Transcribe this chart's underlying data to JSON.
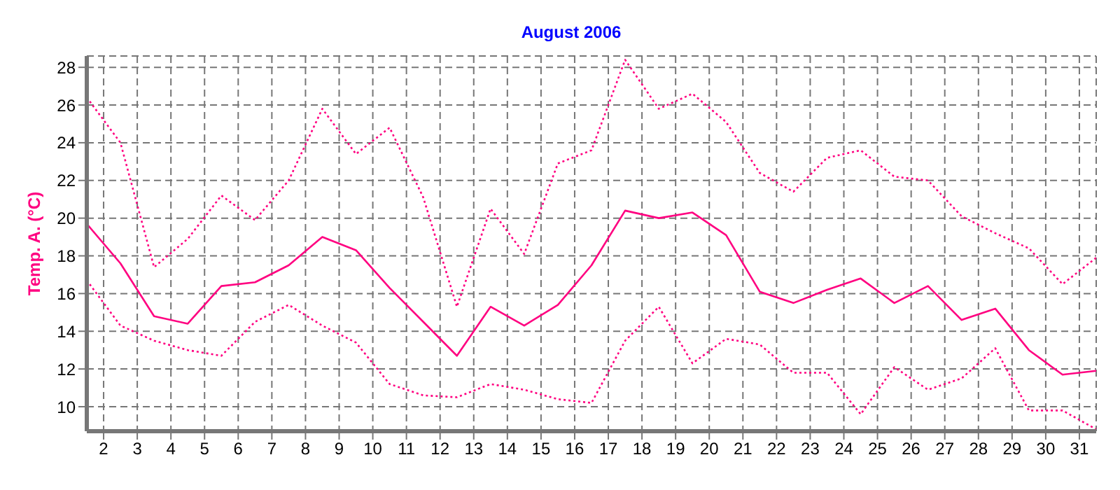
{
  "chart_data": {
    "type": "line",
    "title": "August 2006",
    "ylabel": "Temp. A. (°C)",
    "x": [
      1.5,
      2.5,
      3.5,
      4.5,
      5.5,
      6.5,
      7.5,
      8.5,
      9.5,
      10.5,
      11.5,
      12.5,
      13.5,
      14.5,
      15.5,
      16.5,
      17.5,
      18.5,
      19.5,
      20.5,
      21.5,
      22.5,
      23.5,
      24.5,
      25.5,
      26.5,
      27.5,
      28.5,
      29.5,
      30.5,
      31.5
    ],
    "series": [
      {
        "color": "#ff0080",
        "line_style": "dotted",
        "values": [
          26.4,
          24.0,
          17.4,
          18.9,
          21.2,
          19.9,
          22.0,
          25.8,
          23.4,
          24.8,
          21.1,
          15.3,
          20.5,
          18.1,
          22.9,
          23.6,
          28.4,
          25.8,
          26.6,
          25.1,
          22.4,
          21.4,
          23.2,
          23.6,
          22.2,
          22.0,
          20.1,
          19.2,
          18.4,
          16.5,
          17.9
        ]
      },
      {
        "color": "#ff0080",
        "line_style": "solid",
        "values": [
          19.7,
          17.6,
          14.8,
          14.4,
          16.4,
          16.6,
          17.5,
          19.0,
          18.3,
          16.3,
          14.5,
          12.7,
          15.3,
          14.3,
          15.4,
          17.5,
          20.4,
          20.0,
          20.3,
          19.1,
          16.1,
          15.5,
          16.2,
          16.8,
          15.5,
          16.4,
          14.6,
          15.2,
          13.0,
          11.7,
          11.9
        ]
      },
      {
        "color": "#ff0080",
        "line_style": "dotted",
        "values": [
          16.7,
          14.3,
          13.5,
          13.0,
          12.7,
          14.5,
          15.4,
          14.3,
          13.4,
          11.2,
          10.6,
          10.5,
          11.2,
          10.9,
          10.4,
          10.2,
          13.5,
          15.3,
          12.3,
          13.6,
          13.3,
          11.8,
          11.8,
          9.6,
          12.1,
          10.9,
          11.5,
          13.1,
          9.8,
          9.8,
          8.8
        ]
      }
    ],
    "xlim": [
      1.5,
      31.5
    ],
    "xticks": [
      2,
      3,
      4,
      5,
      6,
      7,
      8,
      9,
      10,
      11,
      12,
      13,
      14,
      15,
      16,
      17,
      18,
      19,
      20,
      21,
      22,
      23,
      24,
      25,
      26,
      27,
      28,
      29,
      30,
      31
    ],
    "ylim": [
      8.7,
      28.6
    ],
    "yticks": [
      10,
      12,
      14,
      16,
      18,
      20,
      22,
      24,
      26,
      28
    ],
    "grid": true,
    "legend": false,
    "marker": "none"
  }
}
